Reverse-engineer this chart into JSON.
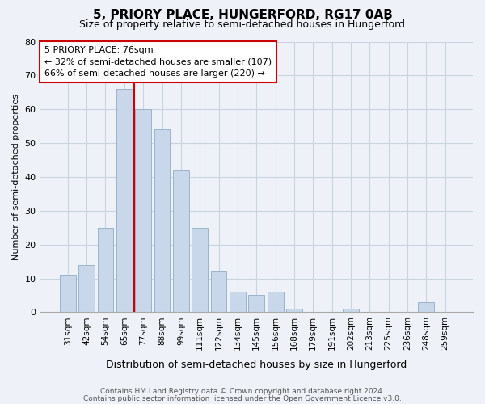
{
  "title": "5, PRIORY PLACE, HUNGERFORD, RG17 0AB",
  "subtitle": "Size of property relative to semi-detached houses in Hungerford",
  "xlabel": "Distribution of semi-detached houses by size in Hungerford",
  "ylabel": "Number of semi-detached properties",
  "bar_labels": [
    "31sqm",
    "42sqm",
    "54sqm",
    "65sqm",
    "77sqm",
    "88sqm",
    "99sqm",
    "111sqm",
    "122sqm",
    "134sqm",
    "145sqm",
    "156sqm",
    "168sqm",
    "179sqm",
    "191sqm",
    "202sqm",
    "213sqm",
    "225sqm",
    "236sqm",
    "248sqm",
    "259sqm"
  ],
  "bar_values": [
    11,
    14,
    25,
    66,
    60,
    54,
    42,
    25,
    12,
    6,
    5,
    6,
    1,
    0,
    0,
    1,
    0,
    0,
    0,
    3,
    0
  ],
  "bar_color": "#c8d8ea",
  "bar_edge_color": "#9ab4cc",
  "grid_color": "#c8d4e0",
  "background_color": "#eef2f8",
  "property_line_x": 3.5,
  "property_line_label": "5 PRIORY PLACE: 76sqm",
  "annotation_line1": "← 32% of semi-detached houses are smaller (107)",
  "annotation_line2": "66% of semi-detached houses are larger (220) →",
  "annotation_box_color": "#ffffff",
  "annotation_box_edge": "#cc0000",
  "property_line_color": "#cc0000",
  "ylim": [
    0,
    80
  ],
  "yticks": [
    0,
    10,
    20,
    30,
    40,
    50,
    60,
    70,
    80
  ],
  "footer1": "Contains HM Land Registry data © Crown copyright and database right 2024.",
  "footer2": "Contains public sector information licensed under the Open Government Licence v3.0."
}
